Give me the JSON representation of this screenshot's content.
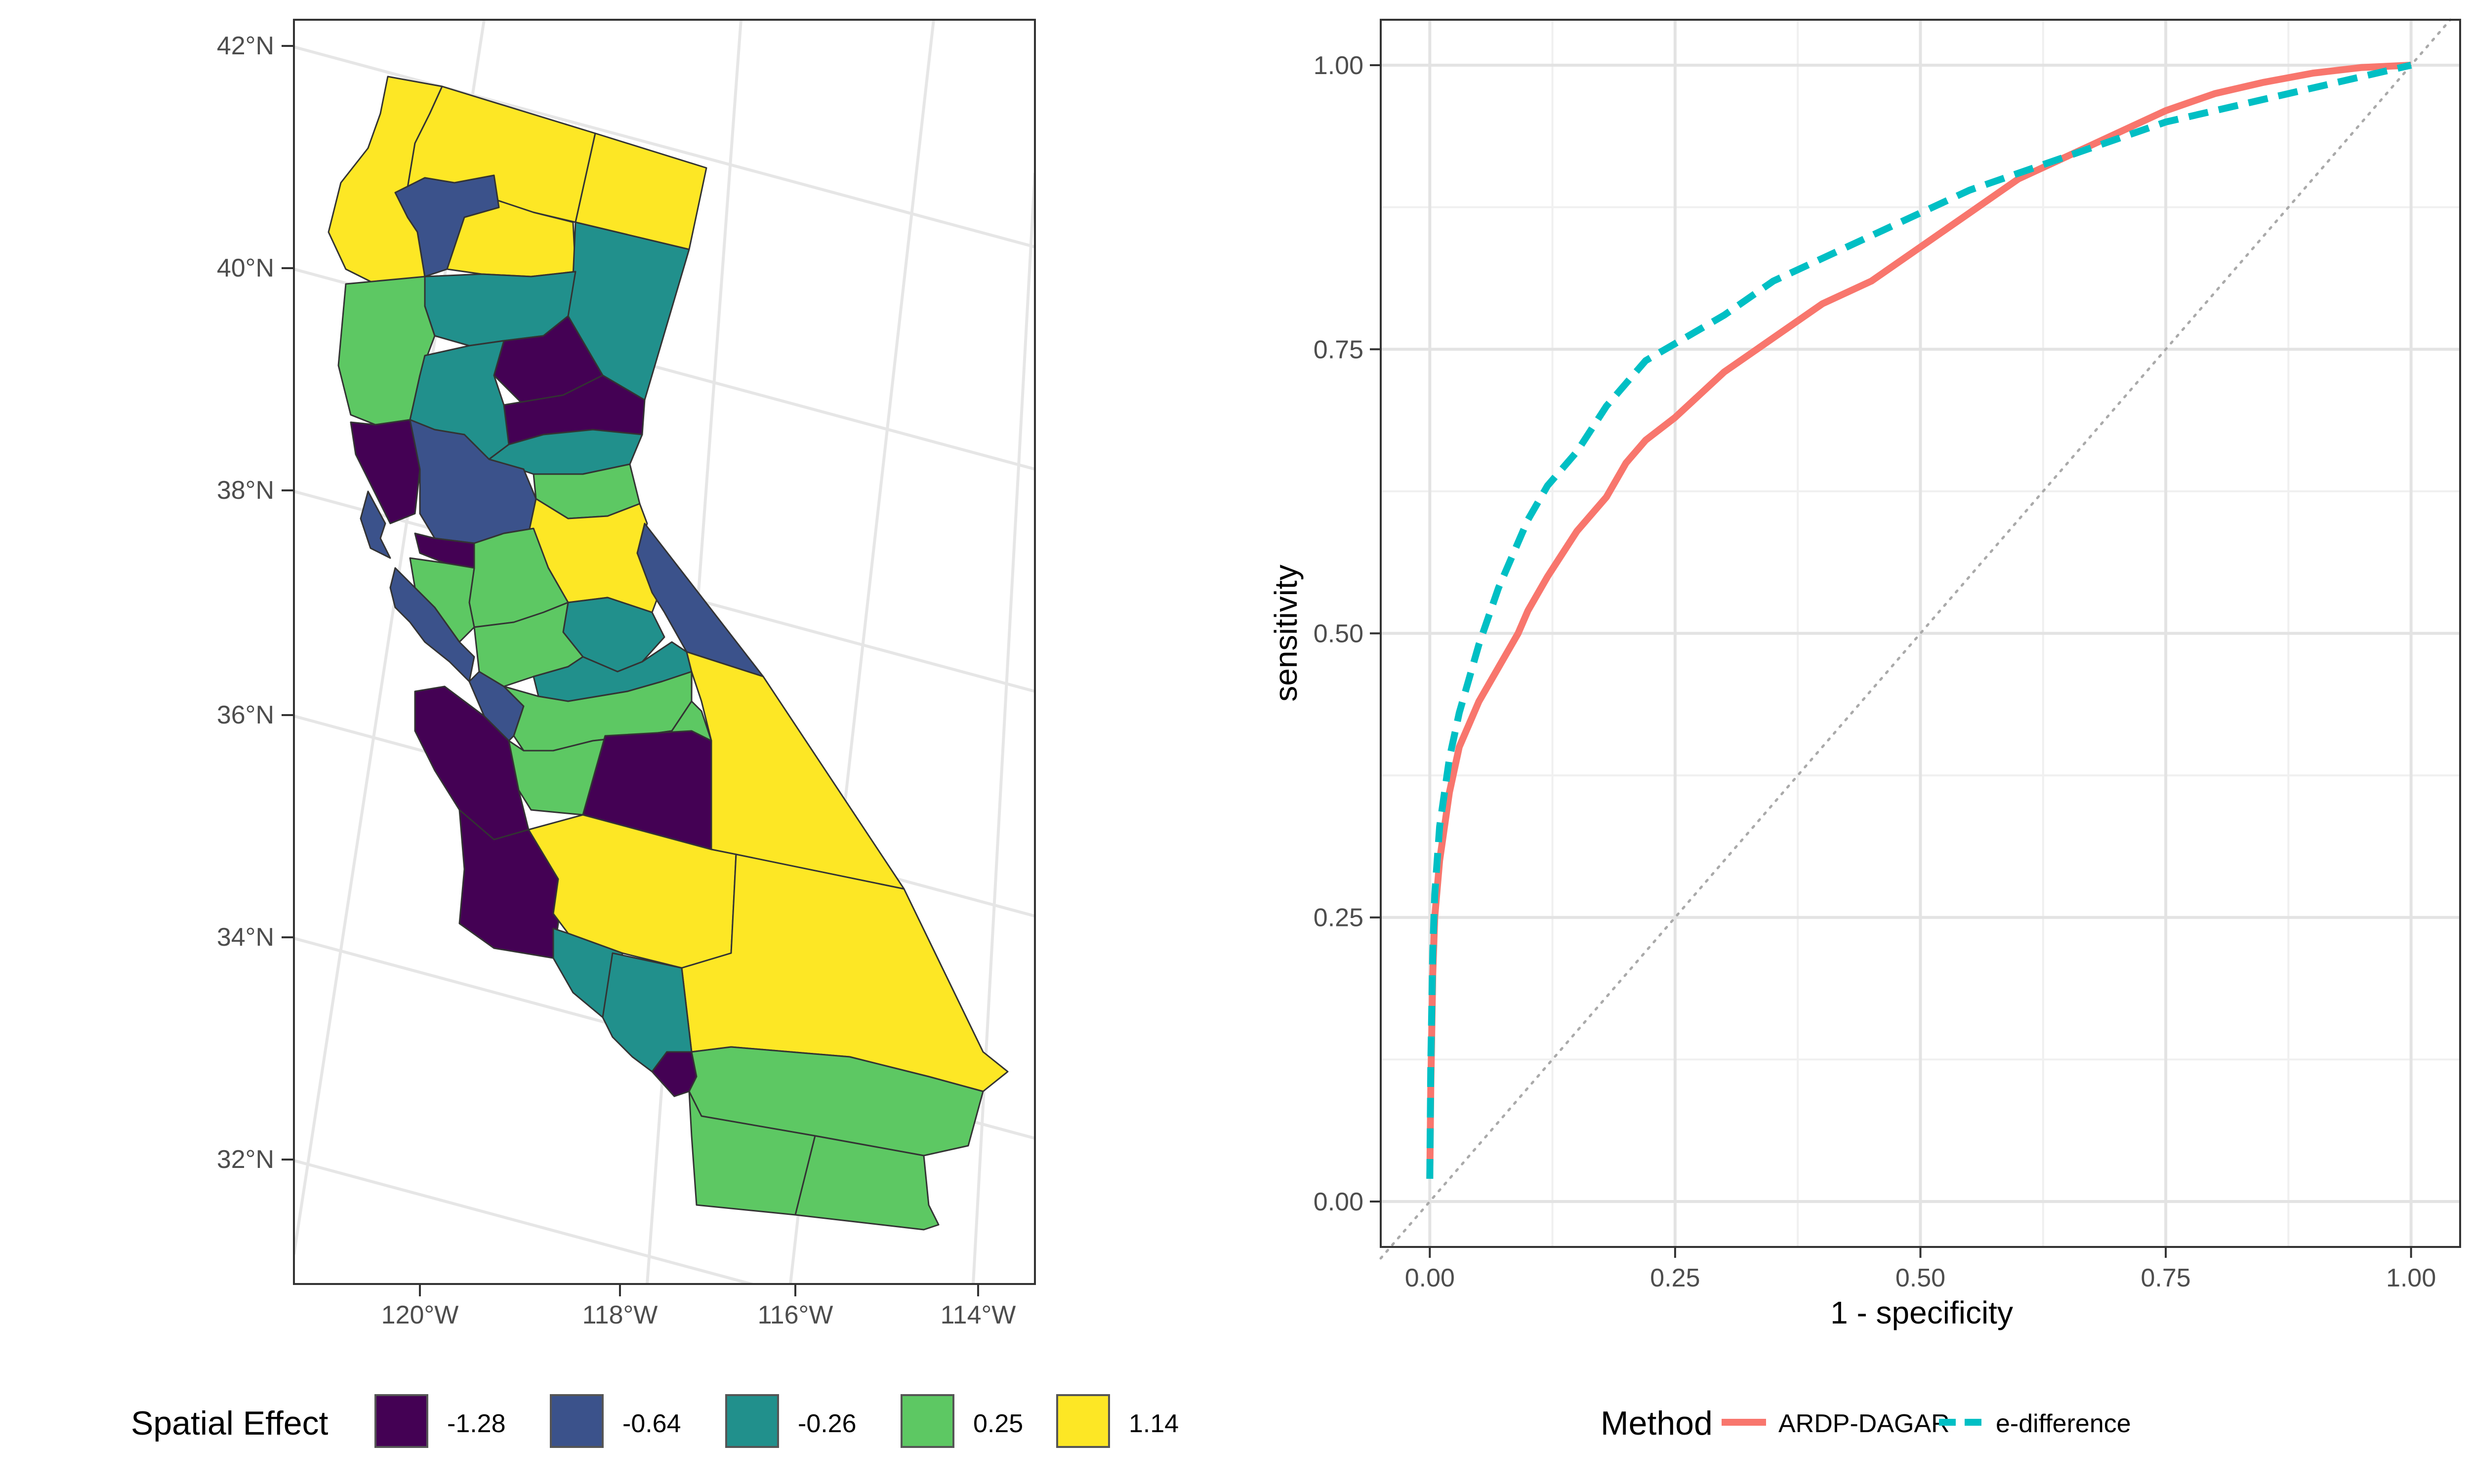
{
  "map": {
    "lat_labels": [
      "42°N",
      "40°N",
      "38°N",
      "36°N",
      "34°N",
      "32°N"
    ],
    "lon_labels": [
      "120°W",
      "118°W",
      "116°W",
      "114°W"
    ],
    "legend": {
      "title": "Spatial Effect",
      "items": [
        {
          "label": "-1.28",
          "color": "#440154"
        },
        {
          "label": "-0.64",
          "color": "#3B528B"
        },
        {
          "label": "-0.26",
          "color": "#21908C"
        },
        {
          "label": "0.25",
          "color": "#5DC863"
        },
        {
          "label": "1.14",
          "color": "#FDE725"
        }
      ]
    },
    "region_colors": {
      "yellow": "#FDE725",
      "green": "#5DC863",
      "teal": "#21908C",
      "blue": "#3B528B",
      "purple": "#440154"
    }
  },
  "chart_data": {
    "type": "line",
    "xlabel": "1 - specificity",
    "ylabel": "sensitivity",
    "xlim": [
      -0.05,
      1.05
    ],
    "ylim": [
      -0.04,
      1.04
    ],
    "x_ticks": [
      "0.00",
      "0.25",
      "0.50",
      "0.75",
      "1.00"
    ],
    "y_ticks": [
      "0.00",
      "0.25",
      "0.50",
      "0.75",
      "1.00"
    ],
    "grid": true,
    "reference_line": {
      "x": [
        0,
        1
      ],
      "y": [
        0,
        1
      ],
      "style": "dotted"
    },
    "legend": {
      "title": "Method",
      "placement": "bottom"
    },
    "series": [
      {
        "name": "ARDP-DAGAR",
        "color": "#F8766D",
        "style": "solid",
        "x": [
          0,
          0.001,
          0.003,
          0.005,
          0.01,
          0.015,
          0.02,
          0.03,
          0.04,
          0.05,
          0.07,
          0.09,
          0.1,
          0.12,
          0.15,
          0.18,
          0.2,
          0.22,
          0.25,
          0.3,
          0.35,
          0.4,
          0.45,
          0.5,
          0.55,
          0.6,
          0.65,
          0.7,
          0.75,
          0.8,
          0.85,
          0.9,
          0.95,
          1.0
        ],
        "y": [
          0.02,
          0.1,
          0.2,
          0.25,
          0.3,
          0.33,
          0.36,
          0.4,
          0.42,
          0.44,
          0.47,
          0.5,
          0.52,
          0.55,
          0.59,
          0.62,
          0.65,
          0.67,
          0.69,
          0.73,
          0.76,
          0.79,
          0.81,
          0.84,
          0.87,
          0.9,
          0.92,
          0.94,
          0.96,
          0.975,
          0.985,
          0.993,
          0.998,
          1.0
        ]
      },
      {
        "name": "e-difference",
        "color": "#00BFC4",
        "style": "dashed",
        "x": [
          0,
          0.001,
          0.003,
          0.005,
          0.01,
          0.015,
          0.02,
          0.03,
          0.04,
          0.05,
          0.07,
          0.09,
          0.1,
          0.12,
          0.15,
          0.18,
          0.2,
          0.22,
          0.25,
          0.3,
          0.35,
          0.4,
          0.45,
          0.5,
          0.55,
          0.6,
          0.65,
          0.7,
          0.75,
          0.8,
          0.85,
          0.9,
          0.95,
          1.0
        ],
        "y": [
          0.02,
          0.12,
          0.22,
          0.27,
          0.33,
          0.36,
          0.39,
          0.43,
          0.46,
          0.49,
          0.54,
          0.58,
          0.6,
          0.63,
          0.66,
          0.7,
          0.72,
          0.74,
          0.755,
          0.78,
          0.81,
          0.83,
          0.85,
          0.87,
          0.89,
          0.905,
          0.92,
          0.935,
          0.95,
          0.96,
          0.97,
          0.98,
          0.99,
          1.0
        ]
      }
    ]
  }
}
